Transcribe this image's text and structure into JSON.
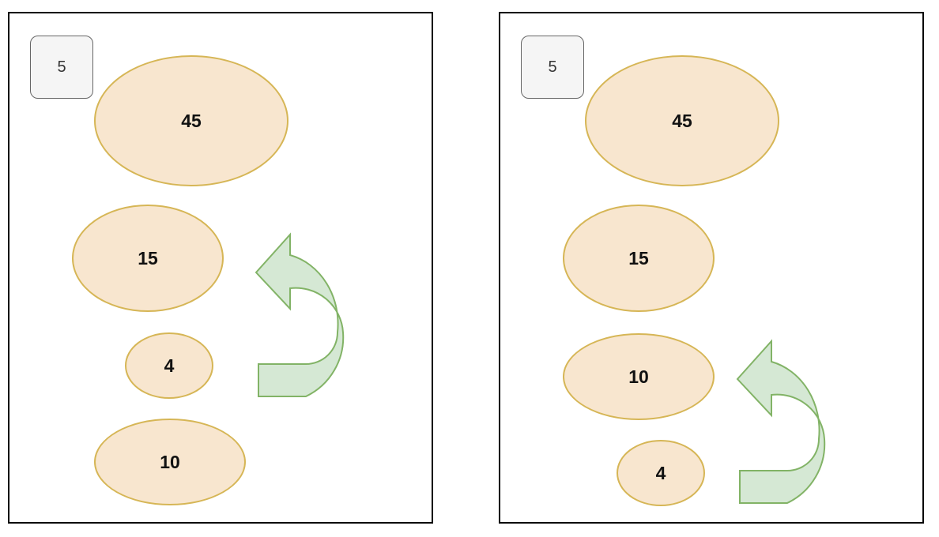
{
  "colors": {
    "node_fill": "#f8e6cf",
    "node_stroke": "#d6b656",
    "arrow_fill": "#d5e8d4",
    "arrow_stroke": "#82b366",
    "counter_fill": "#f5f5f5",
    "counter_stroke": "#666666"
  },
  "panels": [
    {
      "counter": "5",
      "nodes": [
        "45",
        "15",
        "4",
        "10"
      ],
      "arrow_icon": "curved-up-left-arrow-icon"
    },
    {
      "counter": "5",
      "nodes": [
        "45",
        "15",
        "10",
        "4"
      ],
      "arrow_icon": "curved-up-left-arrow-icon"
    }
  ]
}
